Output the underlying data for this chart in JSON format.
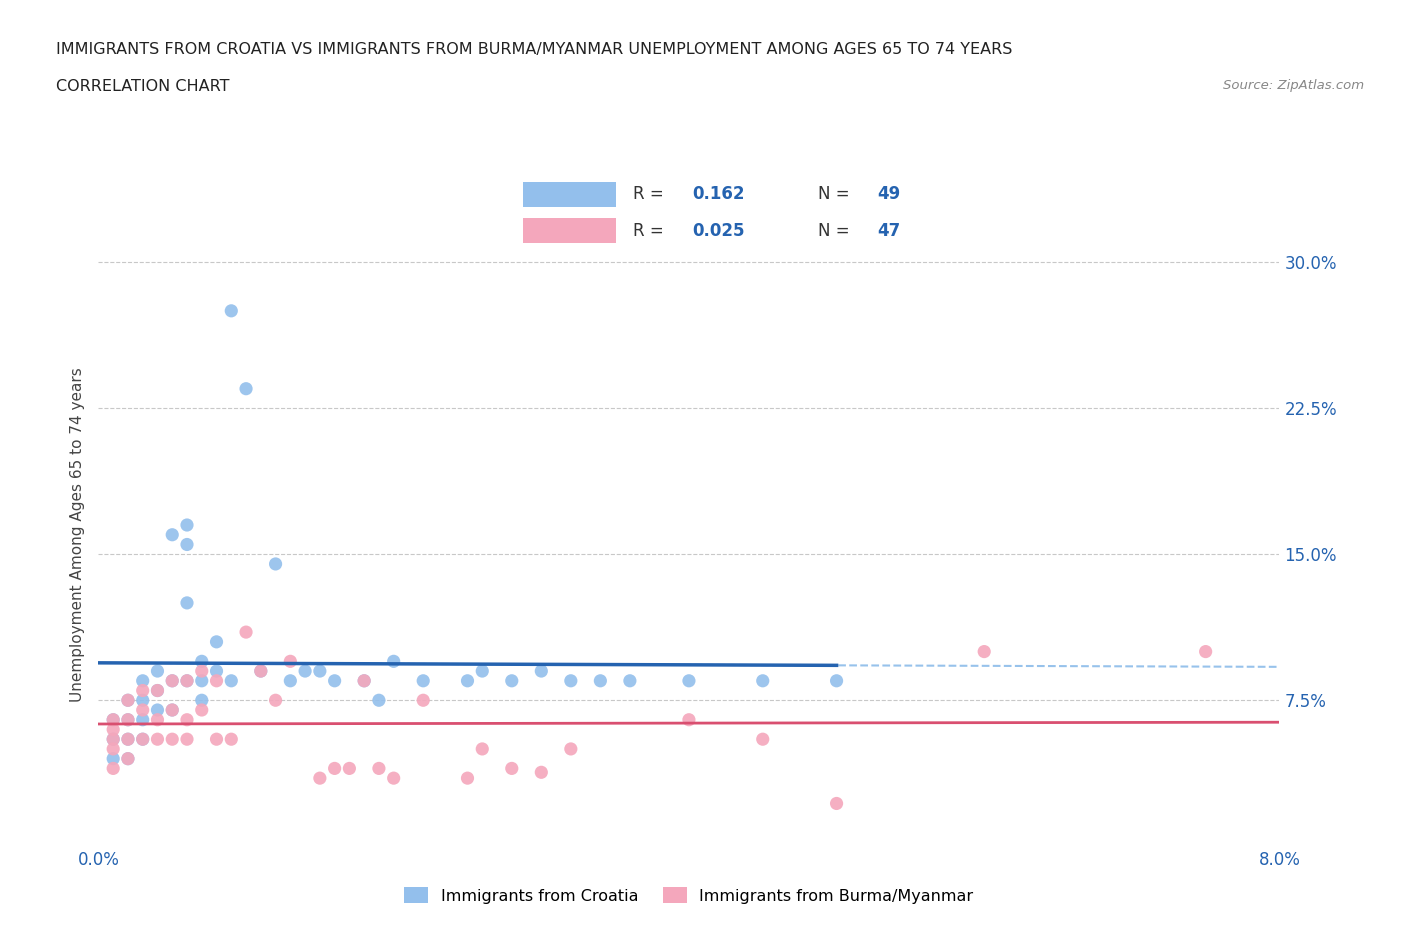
{
  "title_line1": "IMMIGRANTS FROM CROATIA VS IMMIGRANTS FROM BURMA/MYANMAR UNEMPLOYMENT AMONG AGES 65 TO 74 YEARS",
  "title_line2": "CORRELATION CHART",
  "source_text": "Source: ZipAtlas.com",
  "ylabel": "Unemployment Among Ages 65 to 74 years",
  "xlim": [
    0.0,
    0.08
  ],
  "ylim": [
    0.0,
    0.32
  ],
  "xtick_labels": [
    "0.0%",
    "8.0%"
  ],
  "yticks": [
    0.0,
    0.075,
    0.15,
    0.225,
    0.3
  ],
  "ytick_labels": [
    "",
    "7.5%",
    "15.0%",
    "22.5%",
    "30.0%"
  ],
  "croatia_color": "#93bfec",
  "burma_color": "#f4a7bc",
  "croatia_line_color": "#2563b0",
  "burma_line_color": "#d94f70",
  "trendline_dashed_color": "#85b8e8",
  "background_color": "#ffffff",
  "grid_color": "#c8c8c8",
  "legend_R_croatia": "0.162",
  "legend_N_croatia": "49",
  "legend_R_burma": "0.025",
  "legend_N_burma": "47",
  "croatia_x": [
    0.001,
    0.001,
    0.001,
    0.002,
    0.002,
    0.002,
    0.002,
    0.003,
    0.003,
    0.003,
    0.003,
    0.004,
    0.004,
    0.004,
    0.005,
    0.005,
    0.005,
    0.006,
    0.006,
    0.006,
    0.006,
    0.007,
    0.007,
    0.007,
    0.008,
    0.008,
    0.009,
    0.009,
    0.01,
    0.011,
    0.012,
    0.013,
    0.014,
    0.015,
    0.016,
    0.018,
    0.019,
    0.02,
    0.022,
    0.025,
    0.026,
    0.028,
    0.03,
    0.032,
    0.034,
    0.036,
    0.04,
    0.045,
    0.05
  ],
  "croatia_y": [
    0.065,
    0.055,
    0.045,
    0.075,
    0.065,
    0.055,
    0.045,
    0.085,
    0.075,
    0.065,
    0.055,
    0.09,
    0.08,
    0.07,
    0.16,
    0.085,
    0.07,
    0.165,
    0.155,
    0.125,
    0.085,
    0.095,
    0.085,
    0.075,
    0.105,
    0.09,
    0.275,
    0.085,
    0.235,
    0.09,
    0.145,
    0.085,
    0.09,
    0.09,
    0.085,
    0.085,
    0.075,
    0.095,
    0.085,
    0.085,
    0.09,
    0.085,
    0.09,
    0.085,
    0.085,
    0.085,
    0.085,
    0.085,
    0.085
  ],
  "burma_x": [
    0.001,
    0.001,
    0.001,
    0.001,
    0.001,
    0.002,
    0.002,
    0.002,
    0.002,
    0.003,
    0.003,
    0.003,
    0.004,
    0.004,
    0.004,
    0.005,
    0.005,
    0.005,
    0.006,
    0.006,
    0.006,
    0.007,
    0.007,
    0.008,
    0.008,
    0.009,
    0.01,
    0.011,
    0.012,
    0.013,
    0.015,
    0.016,
    0.017,
    0.018,
    0.019,
    0.02,
    0.022,
    0.025,
    0.026,
    0.028,
    0.03,
    0.032,
    0.04,
    0.045,
    0.05,
    0.06,
    0.075
  ],
  "burma_y": [
    0.065,
    0.06,
    0.055,
    0.05,
    0.04,
    0.075,
    0.065,
    0.055,
    0.045,
    0.08,
    0.07,
    0.055,
    0.08,
    0.065,
    0.055,
    0.085,
    0.07,
    0.055,
    0.085,
    0.065,
    0.055,
    0.09,
    0.07,
    0.085,
    0.055,
    0.055,
    0.11,
    0.09,
    0.075,
    0.095,
    0.035,
    0.04,
    0.04,
    0.085,
    0.04,
    0.035,
    0.075,
    0.035,
    0.05,
    0.04,
    0.038,
    0.05,
    0.065,
    0.055,
    0.022,
    0.1,
    0.1
  ]
}
